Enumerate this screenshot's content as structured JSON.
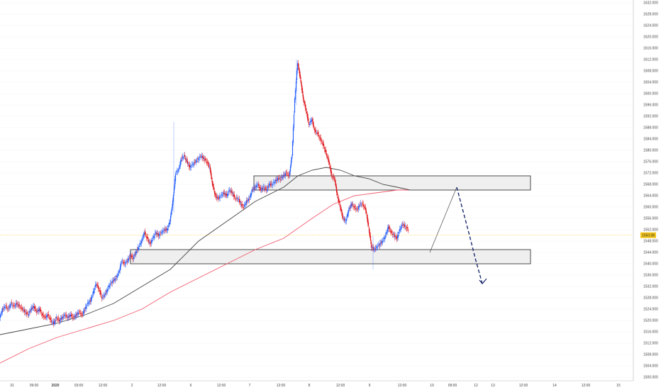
{
  "colors": {
    "up": "#2962ff",
    "down": "#e0191f",
    "ma_fast": "#444444",
    "ma_slow": "#ef5b6e",
    "zone_fill": "#ececec",
    "zone_stroke": "#222222",
    "projection_solid": "#444444",
    "projection_dashed": "#1a2a6c",
    "current_line": "#f5c518",
    "grid": "#f3f3f3"
  },
  "chart_data": {
    "type": "candlestick",
    "y_axis": {
      "range": [
        1500,
        1632
      ],
      "ticks": [
        "1632.000",
        "1628.000",
        "1624.000",
        "1620.000",
        "1616.000",
        "1612.000",
        "1608.000",
        "1604.000",
        "1600.000",
        "1596.000",
        "1592.000",
        "1588.000",
        "1584.000",
        "1580.000",
        "1576.000",
        "1572.000",
        "1568.000",
        "1564.000",
        "1560.000",
        "1556.000",
        "1552.000",
        "1548.000",
        "1544.000",
        "1540.000",
        "1536.000",
        "1532.000",
        "1528.000",
        "1524.000",
        "1520.000",
        "1516.000",
        "1512.000",
        "1508.000",
        "1504.000",
        "1500.000"
      ],
      "current_price": "1550.08"
    },
    "x_axis": {
      "ticks": [
        {
          "label": "31",
          "bold": false
        },
        {
          "label": "09:00",
          "bold": false
        },
        {
          "label": "2020",
          "bold": true
        },
        {
          "label": "03:00",
          "bold": false
        },
        {
          "label": "12:00",
          "bold": false
        },
        {
          "label": "2",
          "bold": false
        },
        {
          "label": "12:00",
          "bold": false
        },
        {
          "label": "6",
          "bold": false
        },
        {
          "label": "12:00",
          "bold": false
        },
        {
          "label": "7",
          "bold": false
        },
        {
          "label": "12:00",
          "bold": false
        },
        {
          "label": "8",
          "bold": false
        },
        {
          "label": "12:00",
          "bold": false
        },
        {
          "label": "9",
          "bold": false
        },
        {
          "label": "12:00",
          "bold": false
        },
        {
          "label": "10",
          "bold": false
        },
        {
          "label": "09:00",
          "bold": false
        },
        {
          "label": "12",
          "bold": false
        },
        {
          "label": "13",
          "bold": false
        },
        {
          "label": "12:00",
          "bold": false
        },
        {
          "label": "14",
          "bold": false
        },
        {
          "label": "12:00",
          "bold": false
        },
        {
          "label": "15",
          "bold": false
        }
      ]
    },
    "close_path": [
      [
        0,
        1521
      ],
      [
        4,
        1524
      ],
      [
        8,
        1525
      ],
      [
        12,
        1524
      ],
      [
        16,
        1526
      ],
      [
        20,
        1525
      ],
      [
        24,
        1526
      ],
      [
        28,
        1525
      ],
      [
        32,
        1524
      ],
      [
        36,
        1523
      ],
      [
        40,
        1522
      ],
      [
        44,
        1524
      ],
      [
        48,
        1525
      ],
      [
        52,
        1523
      ],
      [
        56,
        1524
      ],
      [
        60,
        1522
      ],
      [
        64,
        1521
      ],
      [
        68,
        1522
      ],
      [
        72,
        1520
      ],
      [
        76,
        1519
      ],
      [
        80,
        1521
      ],
      [
        84,
        1520
      ],
      [
        88,
        1521
      ],
      [
        92,
        1522
      ],
      [
        96,
        1521
      ],
      [
        100,
        1522
      ],
      [
        104,
        1521
      ],
      [
        108,
        1522
      ],
      [
        112,
        1523
      ],
      [
        116,
        1522
      ],
      [
        120,
        1524
      ],
      [
        124,
        1526
      ],
      [
        128,
        1527
      ],
      [
        132,
        1530
      ],
      [
        136,
        1533
      ],
      [
        140,
        1531
      ],
      [
        144,
        1528
      ],
      [
        148,
        1529
      ],
      [
        152,
        1531
      ],
      [
        156,
        1533
      ],
      [
        160,
        1534
      ],
      [
        164,
        1535
      ],
      [
        168,
        1537
      ],
      [
        172,
        1541
      ],
      [
        176,
        1540
      ],
      [
        180,
        1541
      ],
      [
        184,
        1543
      ],
      [
        188,
        1542
      ],
      [
        192,
        1544
      ],
      [
        196,
        1546
      ],
      [
        200,
        1548
      ],
      [
        204,
        1551
      ],
      [
        208,
        1549
      ],
      [
        212,
        1547
      ],
      [
        216,
        1549
      ],
      [
        220,
        1551
      ],
      [
        224,
        1550
      ],
      [
        228,
        1551
      ],
      [
        232,
        1552
      ],
      [
        236,
        1552
      ],
      [
        240,
        1555
      ],
      [
        244,
        1562
      ],
      [
        248,
        1572
      ],
      [
        252,
        1573
      ],
      [
        256,
        1577
      ],
      [
        260,
        1578
      ],
      [
        264,
        1576
      ],
      [
        268,
        1574
      ],
      [
        272,
        1575
      ],
      [
        276,
        1576
      ],
      [
        280,
        1577
      ],
      [
        284,
        1578
      ],
      [
        288,
        1577
      ],
      [
        292,
        1576
      ],
      [
        296,
        1574
      ],
      [
        300,
        1568
      ],
      [
        304,
        1564
      ],
      [
        308,
        1563
      ],
      [
        312,
        1564
      ],
      [
        316,
        1565
      ],
      [
        320,
        1564
      ],
      [
        324,
        1566
      ],
      [
        328,
        1565
      ],
      [
        332,
        1563
      ],
      [
        336,
        1563
      ],
      [
        340,
        1561
      ],
      [
        344,
        1560
      ],
      [
        348,
        1562
      ],
      [
        352,
        1563
      ],
      [
        356,
        1566
      ],
      [
        360,
        1567
      ],
      [
        364,
        1568
      ],
      [
        368,
        1566
      ],
      [
        372,
        1567
      ],
      [
        376,
        1566
      ],
      [
        380,
        1568
      ],
      [
        384,
        1568
      ],
      [
        388,
        1569
      ],
      [
        392,
        1570
      ],
      [
        396,
        1570
      ],
      [
        400,
        1571
      ],
      [
        404,
        1572
      ],
      [
        408,
        1571
      ],
      [
        412,
        1578
      ],
      [
        416,
        1598
      ],
      [
        420,
        1611
      ],
      [
        424,
        1605
      ],
      [
        428,
        1598
      ],
      [
        432,
        1594
      ],
      [
        436,
        1589
      ],
      [
        440,
        1591
      ],
      [
        444,
        1587
      ],
      [
        448,
        1586
      ],
      [
        452,
        1584
      ],
      [
        456,
        1582
      ],
      [
        460,
        1579
      ],
      [
        464,
        1576
      ],
      [
        468,
        1571
      ],
      [
        472,
        1570
      ],
      [
        476,
        1564
      ],
      [
        480,
        1560
      ],
      [
        484,
        1556
      ],
      [
        488,
        1555
      ],
      [
        492,
        1559
      ],
      [
        496,
        1561
      ],
      [
        500,
        1560
      ],
      [
        504,
        1559
      ],
      [
        508,
        1561
      ],
      [
        512,
        1561
      ],
      [
        516,
        1559
      ],
      [
        520,
        1553
      ],
      [
        524,
        1546
      ],
      [
        528,
        1545
      ],
      [
        532,
        1546
      ],
      [
        536,
        1547
      ],
      [
        540,
        1548
      ],
      [
        544,
        1550
      ],
      [
        548,
        1553
      ],
      [
        552,
        1551
      ],
      [
        556,
        1550
      ],
      [
        560,
        1549
      ],
      [
        564,
        1552
      ],
      [
        568,
        1554
      ],
      [
        572,
        1553
      ],
      [
        576,
        1552
      ]
    ],
    "wick_highlights": [
      {
        "x": 245,
        "low": 1558,
        "high": 1590
      },
      {
        "x": 418,
        "low": 1596,
        "high": 1612
      },
      {
        "x": 526,
        "low": 1538,
        "high": 1550
      }
    ],
    "ma_fast": [
      [
        0,
        1515
      ],
      [
        40,
        1517
      ],
      [
        80,
        1519
      ],
      [
        120,
        1522
      ],
      [
        160,
        1526
      ],
      [
        200,
        1532
      ],
      [
        240,
        1538
      ],
      [
        280,
        1548
      ],
      [
        320,
        1555
      ],
      [
        360,
        1562
      ],
      [
        400,
        1567
      ],
      [
        420,
        1571
      ],
      [
        440,
        1573
      ],
      [
        460,
        1574
      ],
      [
        480,
        1573
      ],
      [
        500,
        1571
      ],
      [
        520,
        1570
      ],
      [
        540,
        1568
      ],
      [
        560,
        1567
      ],
      [
        578,
        1566
      ]
    ],
    "ma_slow": [
      [
        0,
        1505
      ],
      [
        40,
        1510
      ],
      [
        80,
        1514
      ],
      [
        120,
        1517
      ],
      [
        160,
        1520
      ],
      [
        200,
        1524
      ],
      [
        240,
        1530
      ],
      [
        280,
        1535
      ],
      [
        320,
        1540
      ],
      [
        360,
        1545
      ],
      [
        400,
        1549
      ],
      [
        440,
        1556
      ],
      [
        470,
        1561
      ],
      [
        500,
        1564
      ],
      [
        530,
        1565
      ],
      [
        560,
        1566
      ],
      [
        578,
        1566
      ]
    ],
    "zones": [
      {
        "label": "resistance",
        "x_start": 358,
        "x_end": 748,
        "top": 1571,
        "bottom": 1566
      },
      {
        "label": "support",
        "x_start": 184,
        "x_end": 748,
        "top": 1545,
        "bottom": 1540
      }
    ],
    "projection": {
      "solid": [
        [
          606,
          1544
        ],
        [
          644,
          1567
        ]
      ],
      "dashed": [
        [
          644,
          1567
        ],
        [
          662,
          1550
        ],
        [
          670,
          1542
        ],
        [
          680,
          1533
        ]
      ],
      "arrow_tip": [
        680,
        1533
      ]
    }
  }
}
